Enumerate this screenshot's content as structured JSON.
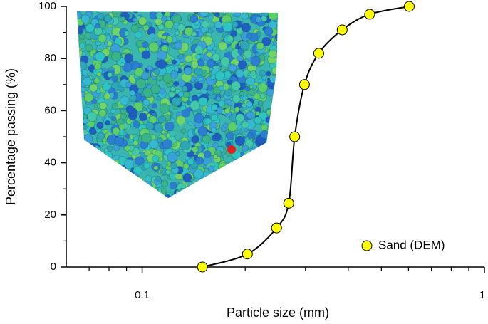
{
  "chart_data": {
    "type": "line",
    "x_label": "Particle size (mm)",
    "y_label": "Percentage passing (%)",
    "x_scale": "log",
    "xlim": [
      0.06,
      1
    ],
    "xticks": [
      0.1,
      1
    ],
    "xminorticks": [
      0.07,
      0.08,
      0.09,
      0.2,
      0.3,
      0.4,
      0.5,
      0.6,
      0.7,
      0.8,
      0.9
    ],
    "ylim": [
      0,
      100
    ],
    "yticks": [
      0,
      20,
      40,
      60,
      80,
      100
    ],
    "yminorticks": [
      10,
      30,
      50,
      70,
      90
    ],
    "legend": "lower right",
    "series": [
      {
        "name": "Sand (DEM)",
        "color": "#ffff00",
        "line_color": "#000000",
        "x": [
          0.15,
          0.203,
          0.247,
          0.268,
          0.279,
          0.298,
          0.328,
          0.384,
          0.462,
          0.603
        ],
        "values": [
          0,
          5,
          15,
          24.5,
          50,
          70,
          82,
          91,
          97,
          100
        ]
      }
    ]
  }
}
